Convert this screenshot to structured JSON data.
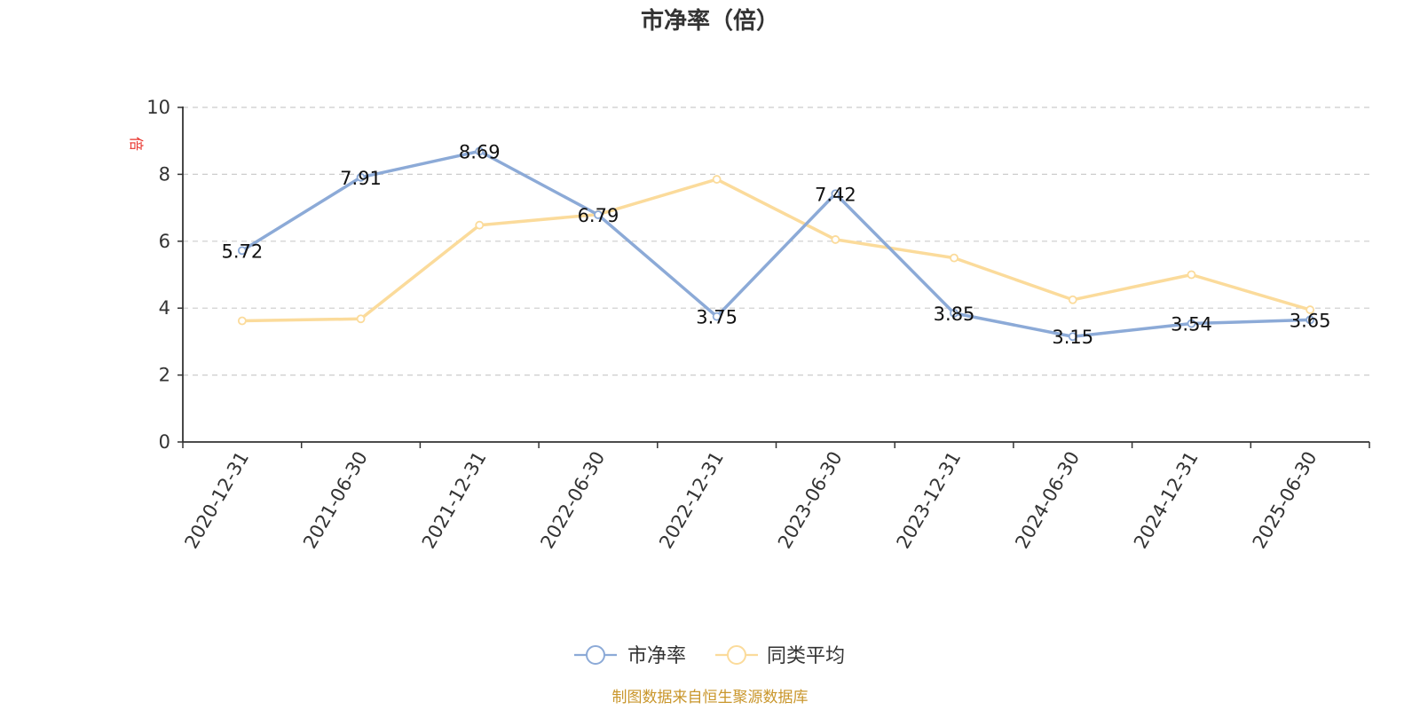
{
  "chart_data": {
    "type": "line",
    "title": "市净率（倍）",
    "ylabel": "倍",
    "xlabel": "",
    "ylim": [
      0,
      10
    ],
    "yticks": [
      "0",
      "2",
      "4",
      "6",
      "8",
      "10"
    ],
    "grid": true,
    "legend_position": "bottom-center",
    "categories": [
      "2020-12-31",
      "2021-06-30",
      "2021-12-31",
      "2022-06-30",
      "2022-12-31",
      "2023-06-30",
      "2023-12-31",
      "2024-06-30",
      "2024-12-31",
      "2025-06-30"
    ],
    "series": [
      {
        "name": "市净率",
        "color": "#8caad7",
        "values": [
          5.72,
          7.91,
          8.69,
          6.79,
          3.75,
          7.42,
          3.85,
          3.15,
          3.54,
          3.65
        ],
        "labels": [
          "5.72",
          "7.91",
          "8.69",
          "6.79",
          "3.75",
          "7.42",
          "3.85",
          "3.15",
          "3.54",
          "3.65"
        ]
      },
      {
        "name": "同类平均",
        "color": "#fbdb9b",
        "values": [
          3.62,
          3.68,
          6.48,
          6.8,
          7.85,
          6.05,
          5.5,
          4.25,
          5.0,
          3.95
        ]
      }
    ],
    "source": "制图数据来自恒生聚源数据库"
  }
}
